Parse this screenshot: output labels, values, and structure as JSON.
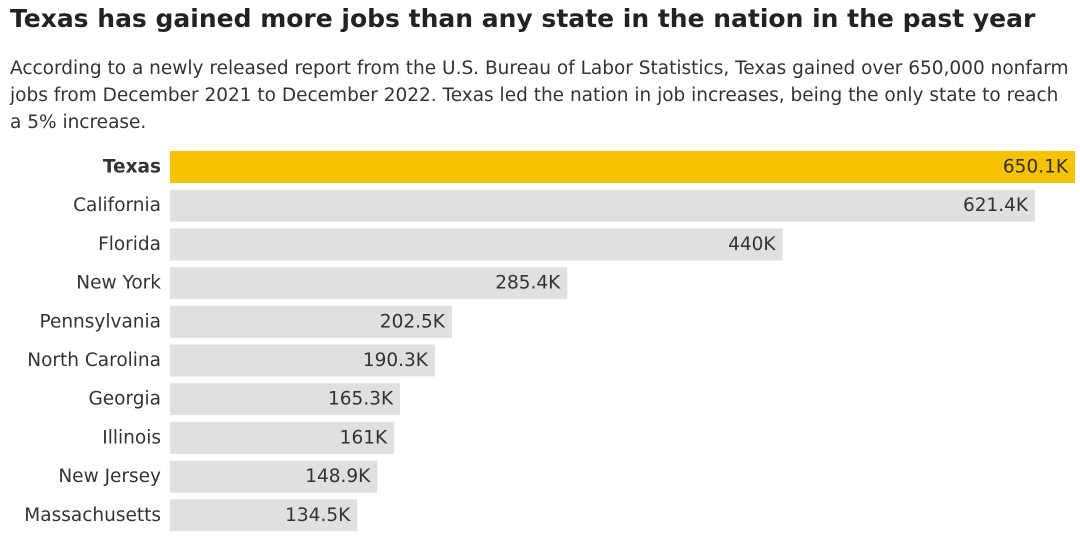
{
  "chart_data": {
    "type": "bar",
    "orientation": "horizontal",
    "title": "Texas has gained more jobs than any state in the nation in the past year",
    "subtitle": "According to a newly released report from the U.S. Bureau of Labor Statistics, Texas gained over 650,000 nonfarm jobs from December 2021 to December 2022. Texas led the nation in job increases, being the only state to reach a 5% increase.",
    "categories": [
      "Texas",
      "California",
      "Florida",
      "New York",
      "Pennsylvania",
      "North Carolina",
      "Georgia",
      "Illinois",
      "New Jersey",
      "Massachusetts"
    ],
    "values": [
      650.1,
      621.4,
      440,
      285.4,
      202.5,
      190.3,
      165.3,
      161,
      148.9,
      134.5
    ],
    "value_labels": [
      "650.1K",
      "621.4K",
      "440K",
      "285.4K",
      "202.5K",
      "190.3K",
      "165.3K",
      "161K",
      "148.9K",
      "134.5K"
    ],
    "colors": [
      "#f7c200",
      "#e0e0e0",
      "#e0e0e0",
      "#e0e0e0",
      "#e0e0e0",
      "#e0e0e0",
      "#e0e0e0",
      "#e0e0e0",
      "#e0e0e0",
      "#e0e0e0"
    ]
  }
}
